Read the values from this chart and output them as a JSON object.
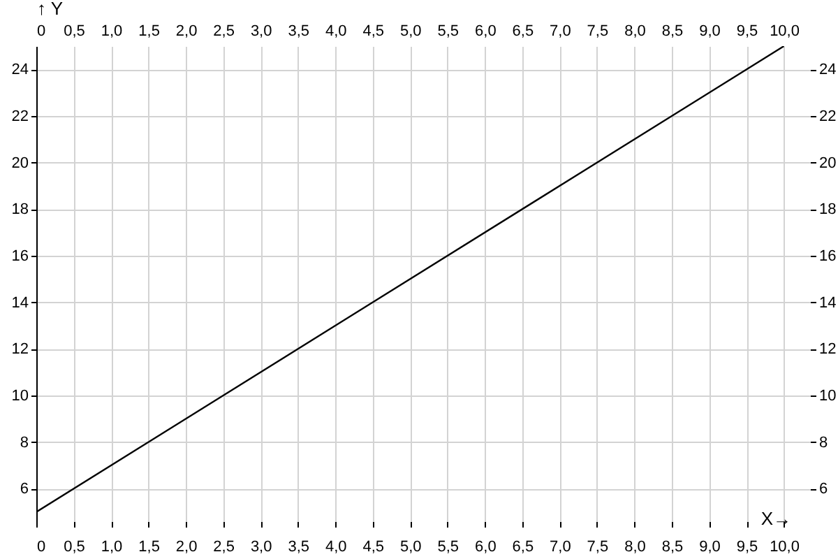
{
  "chart_data": {
    "type": "line",
    "xlabel": "X→",
    "ylabel": "↑ Y",
    "x": [
      0,
      10
    ],
    "series": [
      {
        "color": "#000000",
        "values": [
          5,
          25
        ]
      }
    ],
    "xlim": [
      0,
      10.35
    ],
    "ylim": [
      4.6,
      25
    ],
    "xticks": [
      0,
      {
        "value": 0.5,
        "label": "0,5"
      },
      {
        "value": 1,
        "label": "1,0"
      },
      {
        "value": 1.5,
        "label": "1,5"
      },
      {
        "value": 2,
        "label": "2,0"
      },
      {
        "value": 2.5,
        "label": "2,5"
      },
      {
        "value": 3,
        "label": "3,0"
      },
      {
        "value": 3.5,
        "label": "3,5"
      },
      {
        "value": 4,
        "label": "4,0"
      },
      {
        "value": 4.5,
        "label": "4,5"
      },
      {
        "value": 5,
        "label": "5,0"
      },
      {
        "value": 5.5,
        "label": "5,5"
      },
      {
        "value": 6,
        "label": "6,0"
      },
      {
        "value": 6.5,
        "label": "6,5"
      },
      {
        "value": 7,
        "label": "7,0"
      },
      {
        "value": 7.5,
        "label": "7,5"
      },
      {
        "value": 8,
        "label": "8,0"
      },
      {
        "value": 8.5,
        "label": "8,5"
      },
      {
        "value": 9,
        "label": "9,0"
      },
      {
        "value": 9.5,
        "label": "9,5"
      },
      {
        "value": 10,
        "label": "10,0"
      }
    ],
    "x2lim": [
      0,
      10.35
    ],
    "x2ticks": [
      0,
      {
        "value": 0.5,
        "label": "0,5"
      },
      {
        "value": 1,
        "label": "1,0"
      },
      {
        "value": 1.5,
        "label": "1,5"
      },
      {
        "value": 2,
        "label": "2,0"
      },
      {
        "value": 2.5,
        "label": "2,5"
      },
      {
        "value": 3,
        "label": "3,0"
      },
      {
        "value": 3.5,
        "label": "3,5"
      },
      {
        "value": 4,
        "label": "4,0"
      },
      {
        "value": 4.5,
        "label": "4,5"
      },
      {
        "value": 5,
        "label": "5,0"
      },
      {
        "value": 5.5,
        "label": "5,5"
      },
      {
        "value": 6,
        "label": "6,0"
      },
      {
        "value": 6.5,
        "label": "6,5"
      },
      {
        "value": 7,
        "label": "7,0"
      },
      {
        "value": 7.5,
        "label": "7,5"
      },
      {
        "value": 8,
        "label": "8,0"
      },
      {
        "value": 8.5,
        "label": "8,5"
      },
      {
        "value": 9,
        "label": "9,0"
      },
      {
        "value": 9.5,
        "label": "9,5"
      },
      {
        "value": 10,
        "label": "10,0"
      }
    ],
    "yticks": [
      6,
      8,
      10,
      12,
      14,
      16,
      18,
      20,
      22,
      24
    ],
    "y2lim": [
      4.6,
      25
    ],
    "y2ticks": [
      6,
      8,
      10,
      12,
      14,
      16,
      18,
      20,
      22,
      24
    ],
    "grid": true
  }
}
